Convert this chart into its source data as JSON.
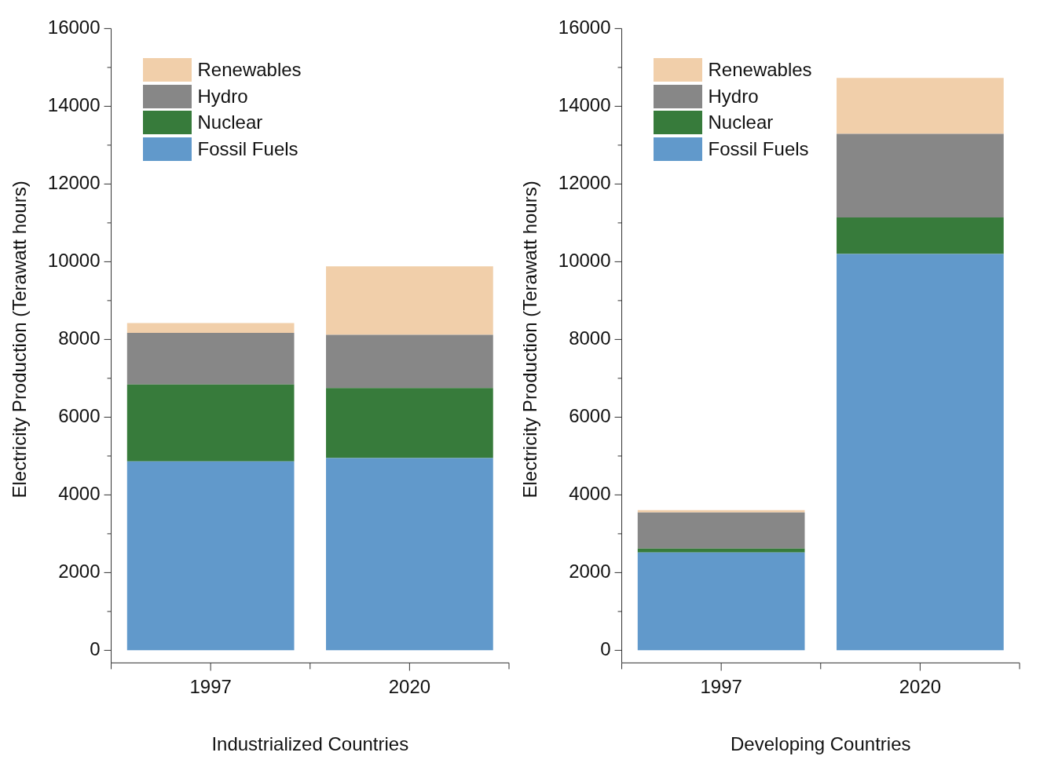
{
  "chart_data": [
    {
      "type": "bar",
      "xlabel": "Industrialized Countries",
      "ylabel": "Electricity Production (Terawatt hours)",
      "categories": [
        "1997",
        "2020"
      ],
      "stacked": true,
      "ylim": [
        0,
        16000
      ],
      "yticks": [
        0,
        2000,
        4000,
        6000,
        8000,
        10000,
        12000,
        14000,
        16000
      ],
      "grid": false,
      "legend": "top left",
      "series": [
        {
          "name": "Fossil Fuels",
          "color": "#6199cb",
          "values": [
            4860,
            4950
          ]
        },
        {
          "name": "Nuclear",
          "color": "#377b3b",
          "values": [
            1980,
            1800
          ]
        },
        {
          "name": "Hydro",
          "color": "#878787",
          "values": [
            1330,
            1370
          ]
        },
        {
          "name": "Renewables",
          "color": "#f1cfaa",
          "values": [
            250,
            1760
          ]
        }
      ]
    },
    {
      "type": "bar",
      "xlabel": "Developing Countries",
      "ylabel": "Electricity Production (Terawatt hours)",
      "categories": [
        "1997",
        "2020"
      ],
      "stacked": true,
      "ylim": [
        0,
        16000
      ],
      "yticks": [
        0,
        2000,
        4000,
        6000,
        8000,
        10000,
        12000,
        14000,
        16000
      ],
      "grid": false,
      "legend": "top left",
      "series": [
        {
          "name": "Fossil Fuels",
          "color": "#6199cb",
          "values": [
            2520,
            10200
          ]
        },
        {
          "name": "Nuclear",
          "color": "#377b3b",
          "values": [
            100,
            940
          ]
        },
        {
          "name": "Hydro",
          "color": "#878787",
          "values": [
            930,
            2150
          ]
        },
        {
          "name": "Renewables",
          "color": "#f1cfaa",
          "values": [
            60,
            1440
          ]
        }
      ]
    }
  ]
}
